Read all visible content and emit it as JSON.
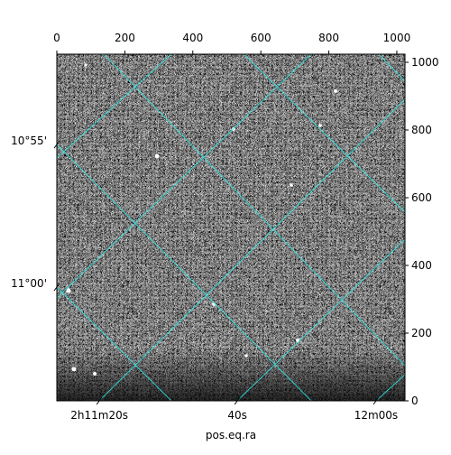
{
  "chart_data": {
    "type": "image",
    "xlabel": "pos.eq.ra",
    "xlim": [
      0,
      1024
    ],
    "ylim": [
      0,
      1024
    ],
    "xticks": [
      0,
      200,
      400,
      600,
      800,
      1000
    ],
    "yticks": [
      0,
      200,
      400,
      600,
      800,
      1000
    ],
    "ra_ticks": [
      {
        "value": 125,
        "label": "2h11m20s"
      },
      {
        "value": 531,
        "label": "40s"
      },
      {
        "value": 939,
        "label": "12m00s"
      }
    ],
    "dec_ticks": [
      {
        "value": 757,
        "label": "10°55'"
      },
      {
        "value": 336,
        "label": "11°00'"
      }
    ]
  }
}
